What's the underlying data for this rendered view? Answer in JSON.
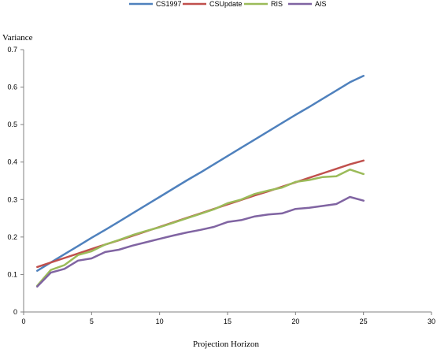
{
  "chart_data": {
    "type": "line",
    "title": "",
    "xlabel": "Projection Horizon",
    "ylabel": "Variance",
    "xlim": [
      0,
      30
    ],
    "ylim": [
      0,
      0.7
    ],
    "x_ticks": [
      "0",
      "5",
      "10",
      "15",
      "20",
      "25",
      "30"
    ],
    "y_ticks": [
      "0",
      "0.1",
      "0.2",
      "0.3",
      "0.4",
      "0.5",
      "0.6",
      "0.7"
    ],
    "x_tick_values": [
      0,
      5,
      10,
      15,
      20,
      25,
      30
    ],
    "y_tick_values": [
      0,
      0.1,
      0.2,
      0.3,
      0.4,
      0.5,
      0.6,
      0.7
    ],
    "grid": false,
    "legend_position": "top",
    "x": [
      1,
      2,
      3,
      4,
      5,
      6,
      7,
      8,
      9,
      10,
      11,
      12,
      13,
      14,
      15,
      16,
      17,
      18,
      19,
      20,
      21,
      22,
      23,
      24,
      25
    ],
    "series": [
      {
        "name": "CS1997",
        "color": "#4F81BD",
        "values": [
          0.11,
          0.132,
          0.154,
          0.176,
          0.198,
          0.219,
          0.241,
          0.263,
          0.285,
          0.307,
          0.329,
          0.351,
          0.372,
          0.394,
          0.416,
          0.438,
          0.46,
          0.482,
          0.504,
          0.526,
          0.547,
          0.569,
          0.591,
          0.613,
          0.63
        ]
      },
      {
        "name": "CSUpdate",
        "color": "#C0504D",
        "values": [
          0.12,
          0.132,
          0.144,
          0.156,
          0.168,
          0.18,
          0.191,
          0.203,
          0.215,
          0.227,
          0.239,
          0.251,
          0.263,
          0.275,
          0.287,
          0.299,
          0.311,
          0.322,
          0.334,
          0.346,
          0.358,
          0.37,
          0.382,
          0.394,
          0.404
        ]
      },
      {
        "name": "RIS",
        "color": "#9BBB59",
        "values": [
          0.07,
          0.112,
          0.125,
          0.152,
          0.162,
          0.18,
          0.192,
          0.205,
          0.216,
          0.226,
          0.238,
          0.25,
          0.262,
          0.274,
          0.29,
          0.3,
          0.315,
          0.324,
          0.332,
          0.347,
          0.352,
          0.36,
          0.362,
          0.38,
          0.368
        ]
      },
      {
        "name": "AIS",
        "color": "#8064A2",
        "values": [
          0.068,
          0.105,
          0.115,
          0.137,
          0.143,
          0.16,
          0.166,
          0.177,
          0.186,
          0.195,
          0.204,
          0.212,
          0.219,
          0.227,
          0.24,
          0.245,
          0.255,
          0.26,
          0.263,
          0.275,
          0.278,
          0.283,
          0.288,
          0.307,
          0.297
        ]
      }
    ]
  }
}
